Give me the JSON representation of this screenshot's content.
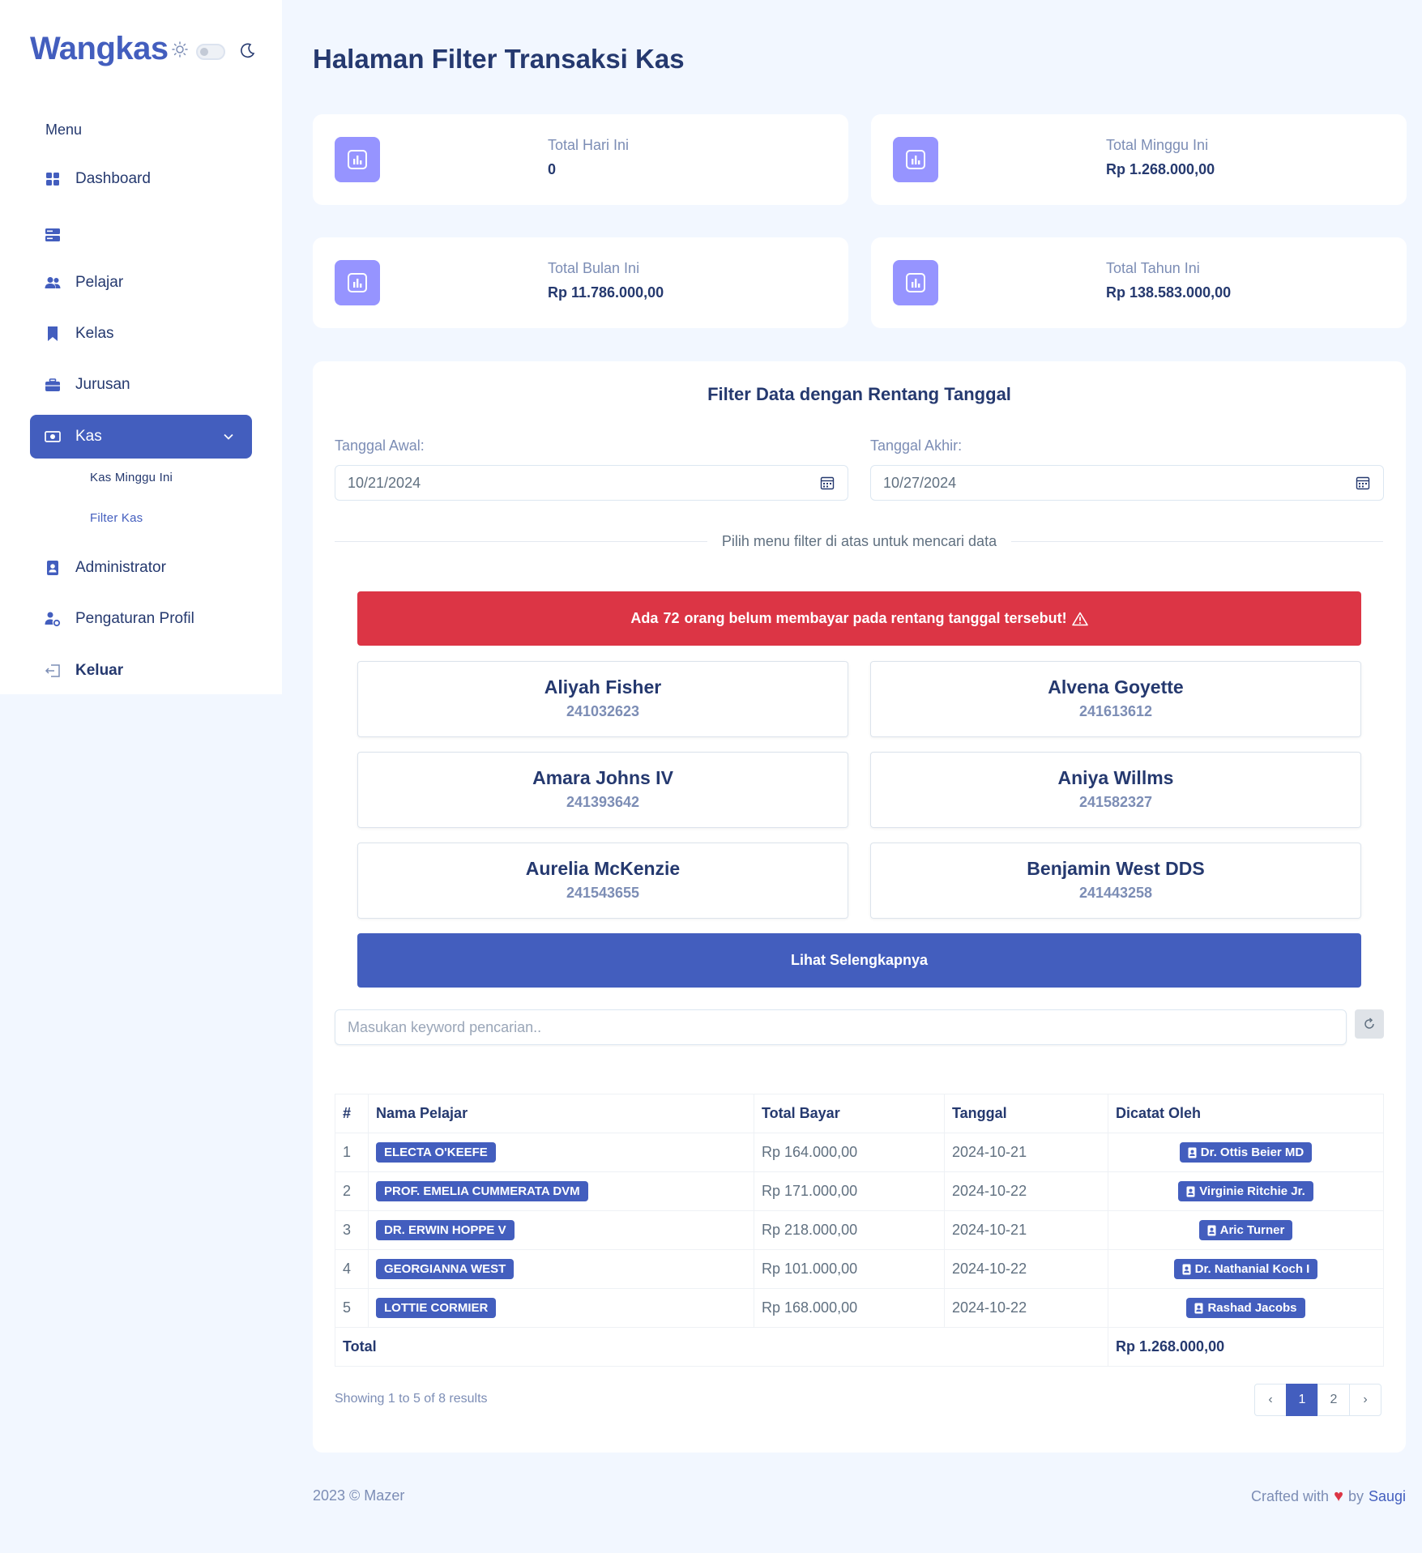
{
  "brand": {
    "name": "Wangkas"
  },
  "sidebar": {
    "menu_title": "Menu",
    "items": [
      {
        "label": "Dashboard",
        "icon": "grid-icon"
      },
      {
        "label": "",
        "icon": "server-icon"
      },
      {
        "label": "Pelajar",
        "icon": "people-icon"
      },
      {
        "label": "Kelas",
        "icon": "bookmark-icon"
      },
      {
        "label": "Jurusan",
        "icon": "briefcase-icon"
      },
      {
        "label": "Kas",
        "icon": "cash-icon",
        "active": true
      },
      {
        "label": "Administrator",
        "icon": "badge-icon"
      },
      {
        "label": "Pengaturan Profil",
        "icon": "person-gear-icon"
      },
      {
        "label": "Keluar",
        "icon": "logout-icon"
      }
    ],
    "sub_items": [
      {
        "label": "Kas Minggu Ini"
      },
      {
        "label": "Filter Kas",
        "active": true
      }
    ]
  },
  "page": {
    "title": "Halaman Filter Transaksi Kas"
  },
  "stats": [
    {
      "label": "Total Hari Ini",
      "value": "0"
    },
    {
      "label": "Total Minggu Ini",
      "value": "Rp 1.268.000,00"
    },
    {
      "label": "Total Bulan Ini",
      "value": "Rp 11.786.000,00"
    },
    {
      "label": "Total Tahun Ini",
      "value": "Rp 138.583.000,00"
    }
  ],
  "filter": {
    "title": "Filter Data dengan Rentang Tanggal",
    "start_label": "Tanggal Awal:",
    "start_value": "10/21/2024",
    "end_label": "Tanggal Akhir:",
    "end_value": "10/27/2024",
    "hint": "Pilih menu filter di atas untuk mencari data"
  },
  "alert": {
    "prefix": "Ada",
    "count": "72",
    "suffix": "orang belum membayar pada rentang tanggal tersebut!"
  },
  "students": [
    {
      "name": "Aliyah Fisher",
      "id": "241032623"
    },
    {
      "name": "Alvena Goyette",
      "id": "241613612"
    },
    {
      "name": "Amara Johns IV",
      "id": "241393642"
    },
    {
      "name": "Aniya Willms",
      "id": "241582327"
    },
    {
      "name": "Aurelia McKenzie",
      "id": "241543655"
    },
    {
      "name": "Benjamin West DDS",
      "id": "241443258"
    }
  ],
  "more_button": "Lihat Selengkapnya",
  "search": {
    "placeholder": "Masukan keyword pencarian.."
  },
  "table": {
    "headers": [
      "#",
      "Nama Pelajar",
      "Total Bayar",
      "Tanggal",
      "Dicatat Oleh"
    ],
    "rows": [
      {
        "no": "1",
        "name": "Electa O'Keefe",
        "amount": "Rp 164.000,00",
        "date": "2024-10-21",
        "recorder": "Dr. Ottis Beier MD"
      },
      {
        "no": "2",
        "name": "Prof. Emelia Cummerata DVM",
        "amount": "Rp 171.000,00",
        "date": "2024-10-22",
        "recorder": "Virginie Ritchie Jr."
      },
      {
        "no": "3",
        "name": "Dr. Erwin Hoppe V",
        "amount": "Rp 218.000,00",
        "date": "2024-10-21",
        "recorder": "Aric Turner"
      },
      {
        "no": "4",
        "name": "Georgianna West",
        "amount": "Rp 101.000,00",
        "date": "2024-10-22",
        "recorder": "Dr. Nathanial Koch I"
      },
      {
        "no": "5",
        "name": "Lottie Cormier",
        "amount": "Rp 168.000,00",
        "date": "2024-10-22",
        "recorder": "Rashad Jacobs"
      }
    ],
    "total_label": "Total",
    "total_value": "Rp 1.268.000,00"
  },
  "pagination": {
    "showing": "Showing 1 to 5 of 8 results",
    "prev": "‹",
    "pages": [
      "1",
      "2"
    ],
    "current": "1",
    "next": "›"
  },
  "footer": {
    "left": "2023 © Mazer",
    "crafted": "Crafted with",
    "by": "by",
    "author": "Saugi"
  },
  "colors": {
    "primary": "#435ebe",
    "danger": "#dc3545",
    "stat_icon": "#9694ff",
    "background": "#f2f7ff"
  }
}
